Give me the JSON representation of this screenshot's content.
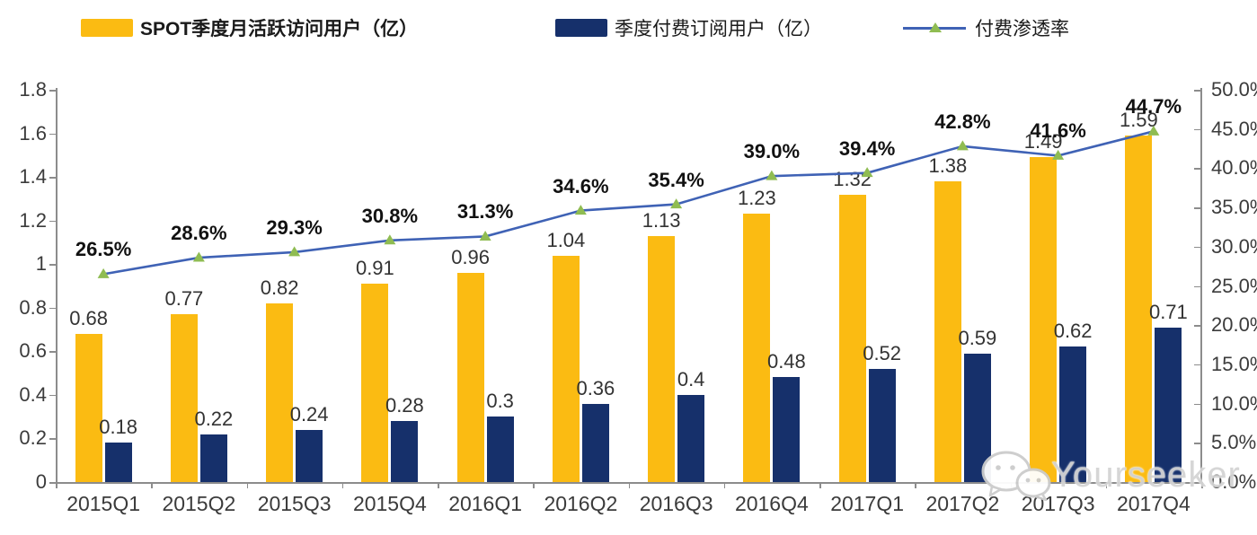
{
  "legend": [
    {
      "label": "SPOT季度月活跃访问用户（亿）",
      "type": "bar",
      "color": "#FBBB12"
    },
    {
      "label": "季度付费订阅用户（亿）",
      "type": "bar",
      "color": "#16306B"
    },
    {
      "label": "付费渗透率",
      "type": "line",
      "color": "#3F62B5",
      "marker_color": "#8FBC52"
    }
  ],
  "chart_data": {
    "type": "bar",
    "subtype": "grouped-bars-with-line-combo",
    "categories": [
      "2015Q1",
      "2015Q2",
      "2015Q3",
      "2015Q4",
      "2016Q1",
      "2016Q2",
      "2016Q3",
      "2016Q4",
      "2017Q1",
      "2017Q2",
      "2017Q3",
      "2017Q4"
    ],
    "series": [
      {
        "name": "SPOT季度月活跃访问用户（亿）",
        "chart_type": "bar",
        "axis": "left",
        "color": "#FBBB12",
        "values": [
          0.68,
          0.77,
          0.82,
          0.91,
          0.96,
          1.04,
          1.13,
          1.23,
          1.32,
          1.38,
          1.49,
          1.59
        ],
        "labels": [
          "0.68",
          "0.77",
          "0.82",
          "0.91",
          "0.96",
          "1.04",
          "1.13",
          "1.23",
          "1.32",
          "1.38",
          "1.49",
          "1.59"
        ]
      },
      {
        "name": "季度付费订阅用户（亿）",
        "chart_type": "bar",
        "axis": "left",
        "color": "#16306B",
        "values": [
          0.18,
          0.22,
          0.24,
          0.28,
          0.3,
          0.36,
          0.4,
          0.48,
          0.52,
          0.59,
          0.62,
          0.71
        ],
        "labels": [
          "0.18",
          "0.22",
          "0.24",
          "0.28",
          "0.3",
          "0.36",
          "0.4",
          "0.48",
          "0.52",
          "0.59",
          "0.62",
          "0.71"
        ]
      },
      {
        "name": "付费渗透率",
        "chart_type": "line",
        "axis": "right",
        "color": "#3F62B5",
        "marker": "triangle",
        "marker_color": "#8FBC52",
        "values": [
          26.5,
          28.6,
          29.3,
          30.8,
          31.3,
          34.6,
          35.4,
          39.0,
          39.4,
          42.8,
          41.6,
          44.7
        ],
        "labels": [
          "26.5%",
          "28.6%",
          "29.3%",
          "30.8%",
          "31.3%",
          "34.6%",
          "35.4%",
          "39.0%",
          "39.4%",
          "42.8%",
          "41.6%",
          "44.7%"
        ]
      }
    ],
    "left_axis": {
      "min": 0,
      "max": 1.8,
      "tick_labels": [
        "0",
        "0.2",
        "0.4",
        "0.6",
        "0.8",
        "1",
        "1.2",
        "1.4",
        "1.6",
        "1.8"
      ]
    },
    "right_axis": {
      "min": 0,
      "max": 50,
      "tick_labels": [
        "0.0%",
        "5.0%",
        "10.0%",
        "15.0%",
        "20.0%",
        "25.0%",
        "30.0%",
        "35.0%",
        "40.0%",
        "45.0%",
        "50.0%"
      ]
    },
    "grid": false,
    "legend_position": "top"
  },
  "watermark": {
    "text": "Yourseeker",
    "icon": "wechat-icon"
  }
}
